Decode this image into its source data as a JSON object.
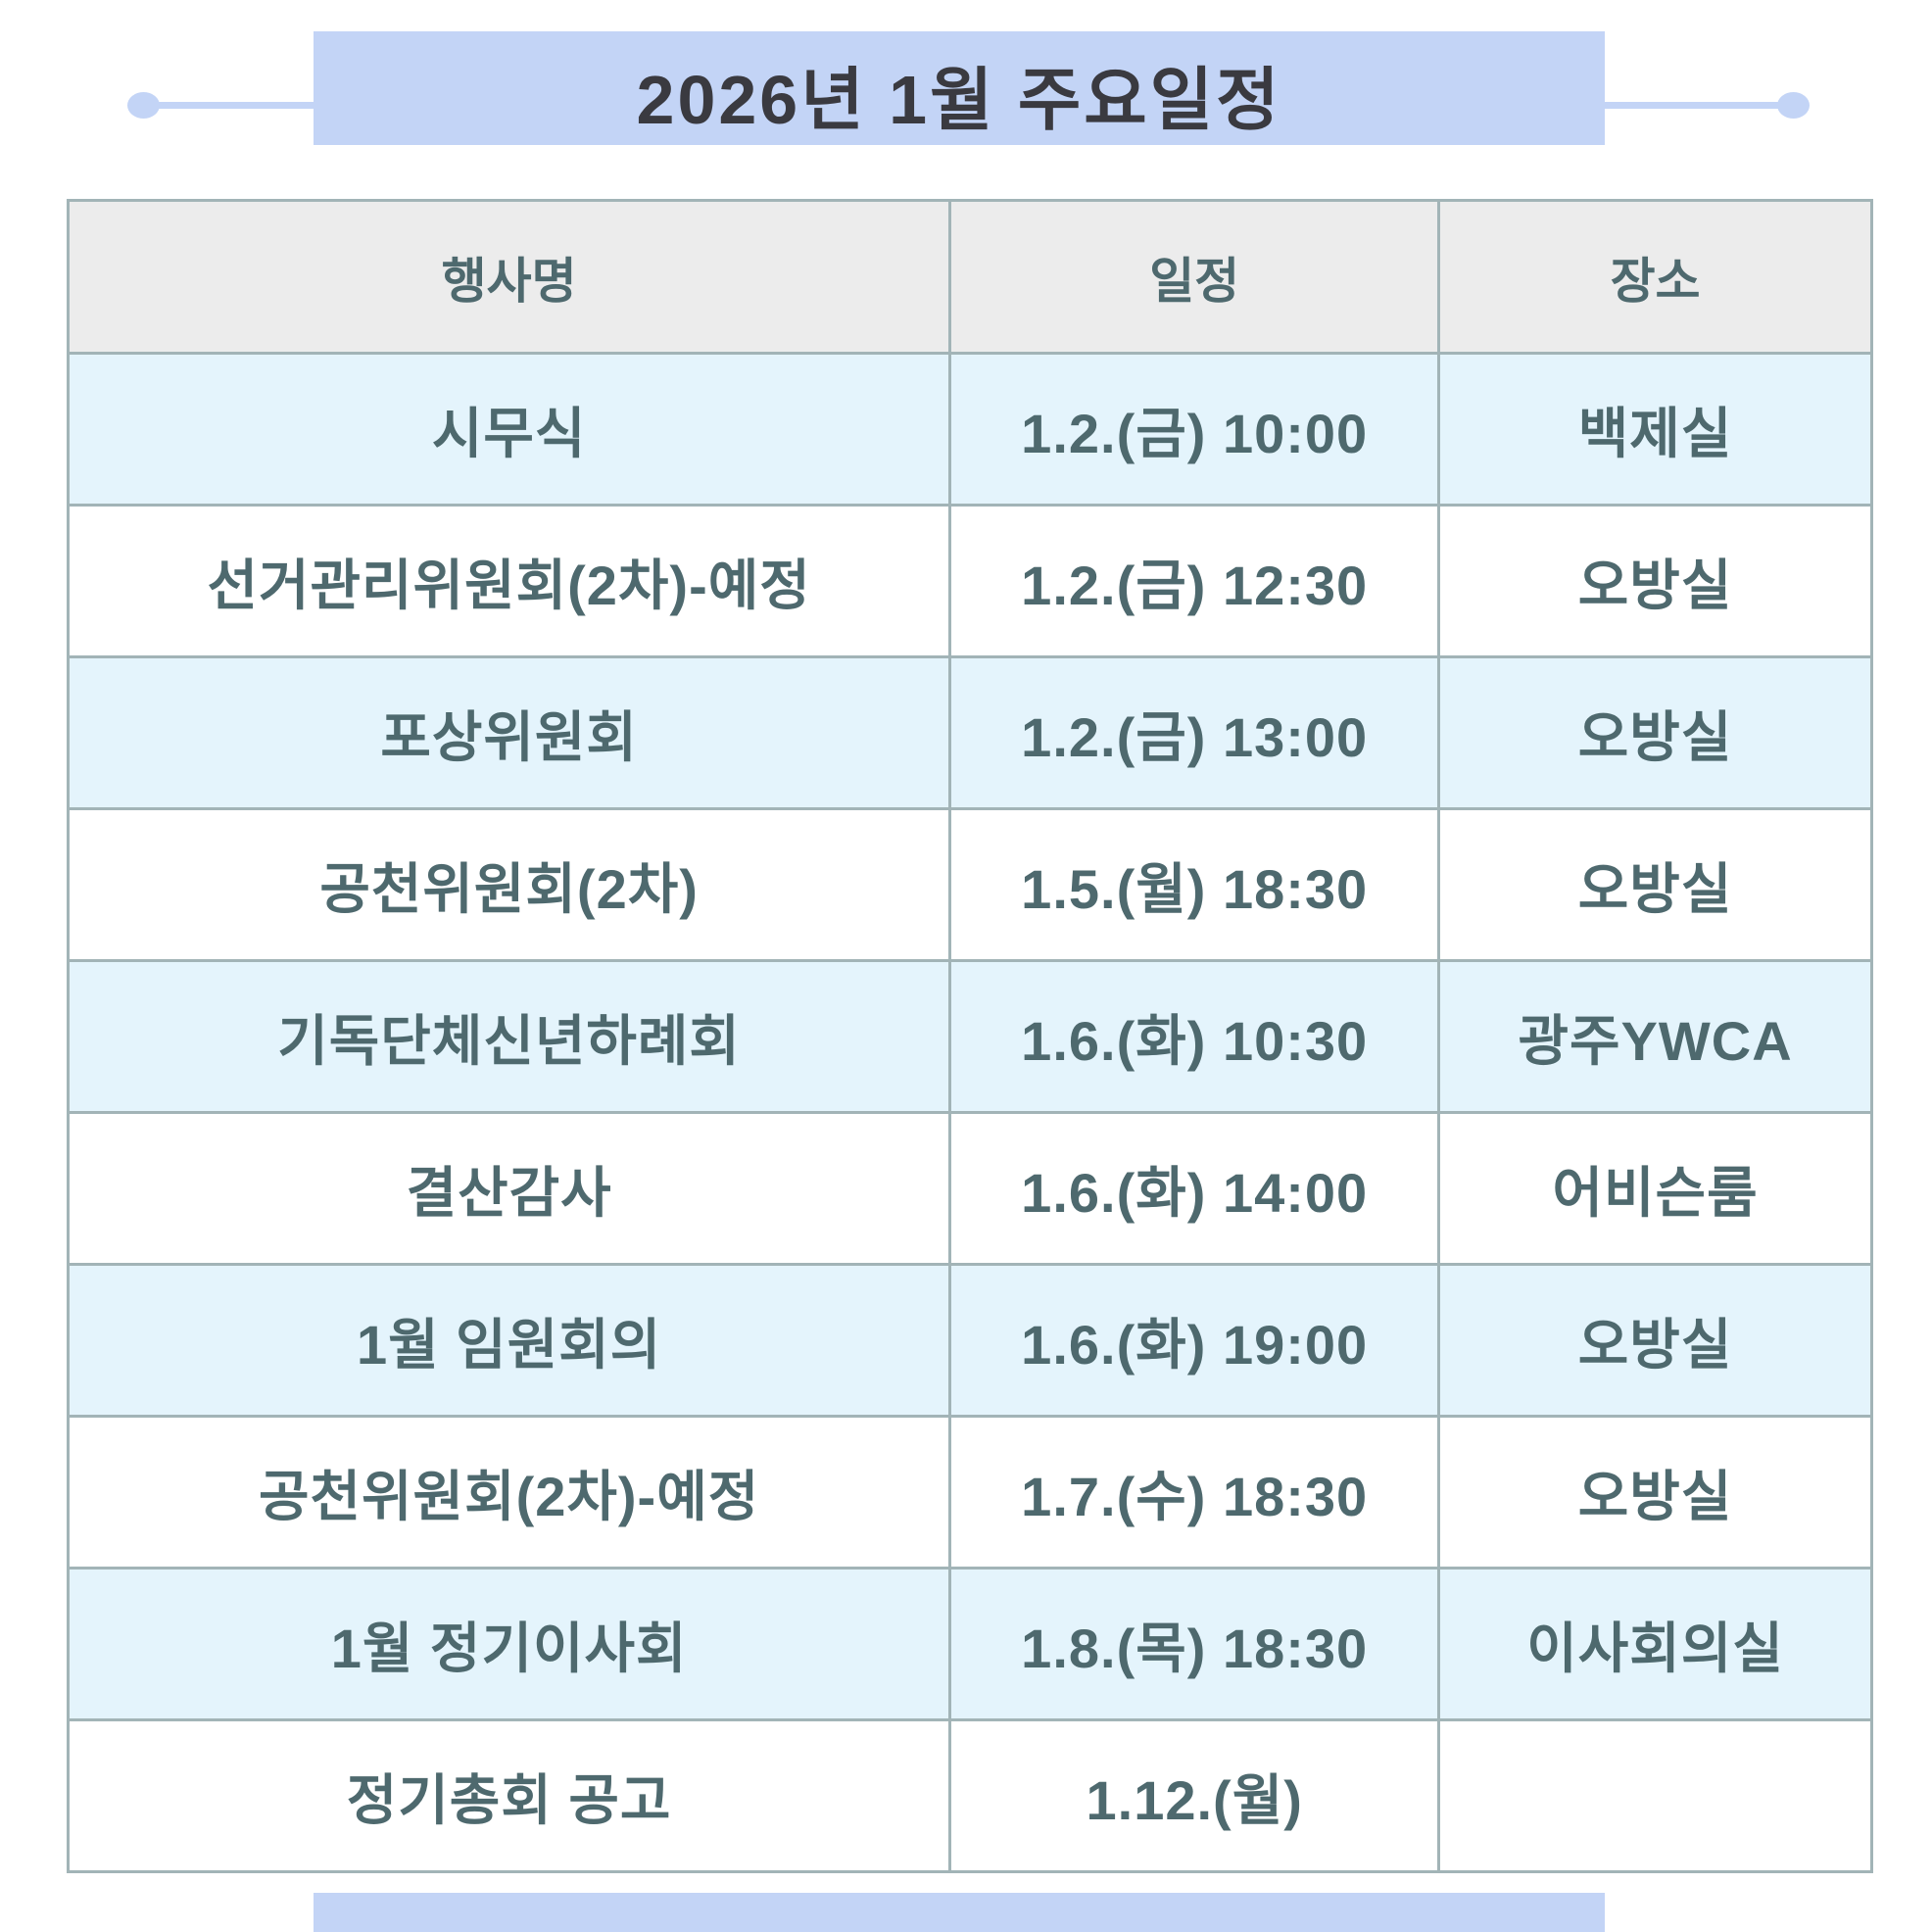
{
  "title": "2026년 1월 주요일정",
  "table": {
    "headers": [
      "행사명",
      "일정",
      "장소"
    ],
    "rows": [
      [
        "시무식",
        "1.2.(금) 10:00",
        "백제실"
      ],
      [
        "선거관리위원회(2차)-예정",
        "1.2.(금) 12:30",
        "오방실"
      ],
      [
        "포상위원회",
        "1.2.(금) 13:00",
        "오방실"
      ],
      [
        "공천위원회(2차)",
        "1.5.(월) 18:30",
        "오방실"
      ],
      [
        "기독단체신년하례회",
        "1.6.(화) 10:30",
        "광주YWCA"
      ],
      [
        "결산감사",
        "1.6.(화) 14:00",
        "어비슨룸"
      ],
      [
        "1월 임원회의",
        "1.6.(화) 19:00",
        "오방실"
      ],
      [
        "공천위원회(2차)-예정",
        "1.7.(수) 18:30",
        "오방실"
      ],
      [
        "1월 정기이사회",
        "1.8.(목) 18:30",
        "이사회의실"
      ],
      [
        "정기총회 공고",
        "1.12.(월)",
        ""
      ]
    ]
  },
  "colors": {
    "banner_bg": "#c3d4f6",
    "title_text": "#3a3a40",
    "header_bg": "#ececec",
    "row_bg": "#ffffff",
    "alt_row_bg": "#e4f4fc",
    "cell_text": "#4e696e",
    "border": "#a2b4b7"
  }
}
